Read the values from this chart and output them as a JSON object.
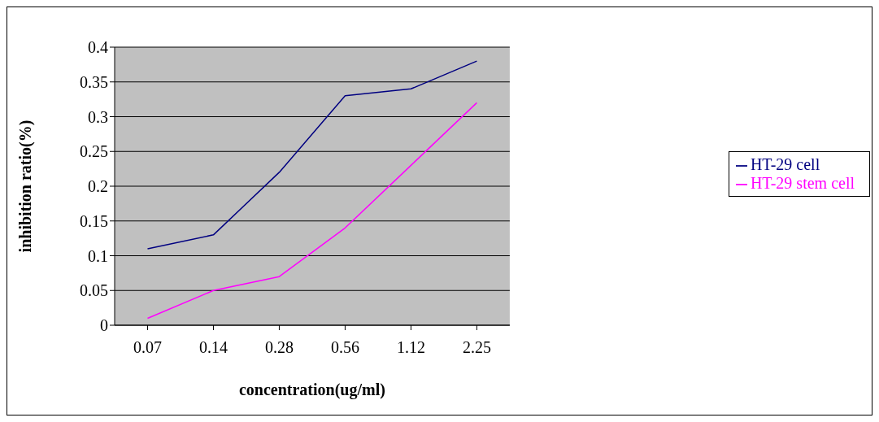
{
  "chart_data": {
    "type": "line",
    "xlabel": "concentration(ug/ml)",
    "ylabel": "inhibition ratio(%)",
    "categories": [
      "0.07",
      "0.14",
      "0.28",
      "0.56",
      "1.12",
      "2.25"
    ],
    "series": [
      {
        "name": "HT-29 cell",
        "color": "#000080",
        "values": [
          0.11,
          0.13,
          0.22,
          0.33,
          0.34,
          0.38
        ]
      },
      {
        "name": "HT-29 stem cell",
        "color": "#ff00ff",
        "values": [
          0.01,
          0.05,
          0.07,
          0.14,
          0.23,
          0.32
        ]
      }
    ],
    "ylim": [
      0,
      0.4
    ],
    "yticks": [
      0,
      0.05,
      0.1,
      0.15,
      0.2,
      0.25,
      0.3,
      0.35,
      0.4
    ],
    "grid": "y",
    "legend": "right",
    "marker": "none",
    "line_style": "solid"
  }
}
